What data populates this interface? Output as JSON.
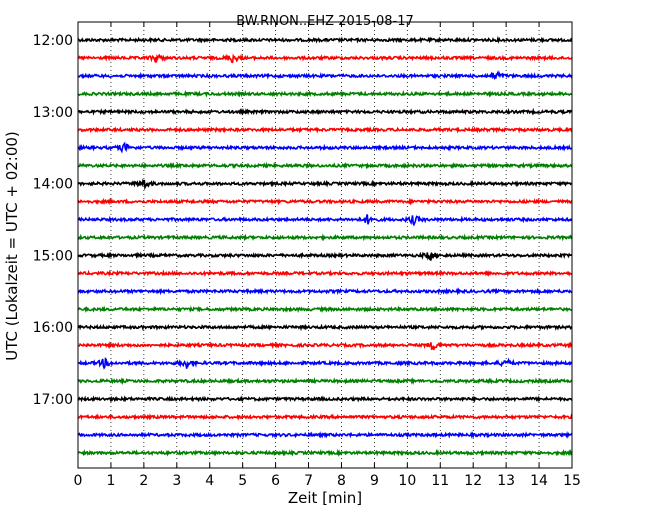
{
  "chart_data": {
    "type": "line",
    "title": "BW.RNON..EHZ 2015-08-17",
    "xlabel": "Zeit  [min]",
    "ylabel": "UTC (Lokalzeit = UTC + 02:00)",
    "xlim": [
      0,
      15
    ],
    "x_ticks": [
      0,
      1,
      2,
      3,
      4,
      5,
      6,
      7,
      8,
      9,
      10,
      11,
      12,
      13,
      14,
      15
    ],
    "y_tick_labels": [
      "12:00",
      "13:00",
      "14:00",
      "15:00",
      "16:00",
      "17:00"
    ],
    "grid": "vertical dotted",
    "trace_colors": [
      "#000000",
      "#ff0000",
      "#0000ff",
      "#008000"
    ],
    "traces": [
      {
        "start": "12:00",
        "color": "#000000",
        "events_min": []
      },
      {
        "start": "12:15",
        "color": "#ff0000",
        "events_min": [
          2.4,
          4.7
        ]
      },
      {
        "start": "12:30",
        "color": "#0000ff",
        "events_min": [
          12.7
        ]
      },
      {
        "start": "12:45",
        "color": "#008000",
        "events_min": []
      },
      {
        "start": "13:00",
        "color": "#000000",
        "events_min": []
      },
      {
        "start": "13:15",
        "color": "#ff0000",
        "events_min": []
      },
      {
        "start": "13:30",
        "color": "#0000ff",
        "events_min": [
          1.4
        ]
      },
      {
        "start": "13:45",
        "color": "#008000",
        "events_min": []
      },
      {
        "start": "14:00",
        "color": "#000000",
        "events_min": [
          2.0
        ]
      },
      {
        "start": "14:15",
        "color": "#ff0000",
        "events_min": []
      },
      {
        "start": "14:30",
        "color": "#0000ff",
        "events_min": [
          8.8,
          10.2
        ]
      },
      {
        "start": "14:45",
        "color": "#008000",
        "events_min": []
      },
      {
        "start": "15:00",
        "color": "#000000",
        "events_min": [
          10.7
        ]
      },
      {
        "start": "15:15",
        "color": "#ff0000",
        "events_min": []
      },
      {
        "start": "15:30",
        "color": "#0000ff",
        "events_min": []
      },
      {
        "start": "15:45",
        "color": "#008000",
        "events_min": []
      },
      {
        "start": "16:00",
        "color": "#000000",
        "events_min": []
      },
      {
        "start": "16:15",
        "color": "#ff0000",
        "events_min": [
          10.8
        ]
      },
      {
        "start": "16:30",
        "color": "#0000ff",
        "events_min": [
          0.8,
          3.3,
          13.0
        ]
      },
      {
        "start": "16:45",
        "color": "#008000",
        "events_min": []
      },
      {
        "start": "17:00",
        "color": "#000000",
        "events_min": []
      },
      {
        "start": "17:15",
        "color": "#ff0000",
        "events_min": []
      },
      {
        "start": "17:30",
        "color": "#0000ff",
        "events_min": []
      },
      {
        "start": "17:45",
        "color": "#008000",
        "events_min": []
      }
    ]
  }
}
